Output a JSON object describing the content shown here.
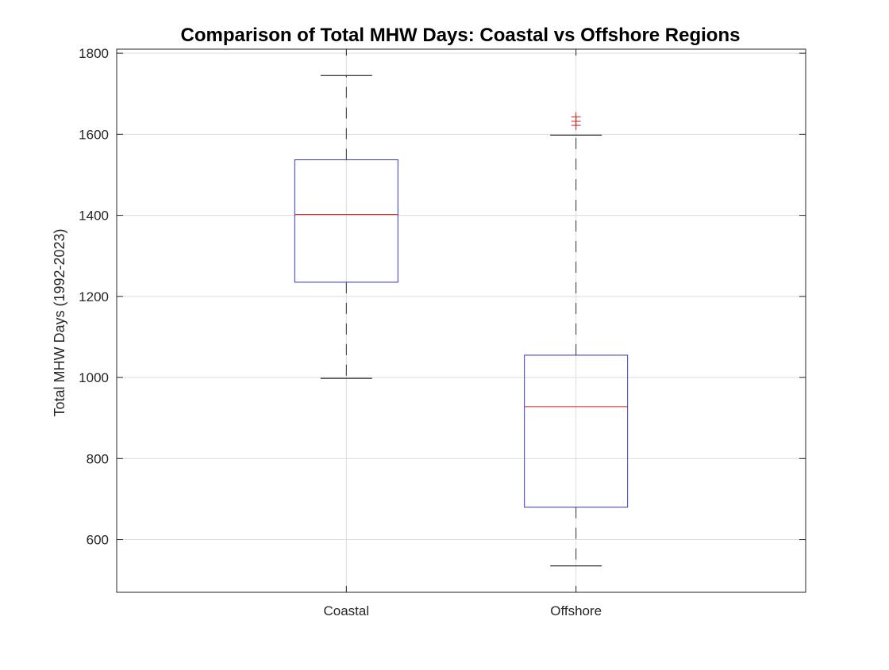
{
  "chart_data": {
    "type": "boxplot",
    "title": "Comparison of Total MHW Days: Coastal vs Offshore Regions",
    "xlabel": "",
    "ylabel": "Total MHW Days (1992-2023)",
    "ylim": [
      470,
      1810
    ],
    "yticks": [
      600,
      800,
      1000,
      1200,
      1400,
      1600,
      1800
    ],
    "grid": true,
    "categories": [
      "Coastal",
      "Offshore"
    ],
    "boxes": [
      {
        "category": "Coastal",
        "whisker_low": 998,
        "q1": 1235,
        "median": 1402,
        "q3": 1537,
        "whisker_high": 1745,
        "outliers": []
      },
      {
        "category": "Offshore",
        "whisker_low": 535,
        "q1": 680,
        "median": 928,
        "q3": 1055,
        "whisker_high": 1598,
        "outliers": [
          1622,
          1632,
          1643
        ]
      }
    ],
    "colors": {
      "box": "#3333cc",
      "median": "#cc2222",
      "whisker": "#000000",
      "outlier": "#cc2222",
      "grid": "#dcdcdc",
      "axis": "#262626"
    }
  }
}
